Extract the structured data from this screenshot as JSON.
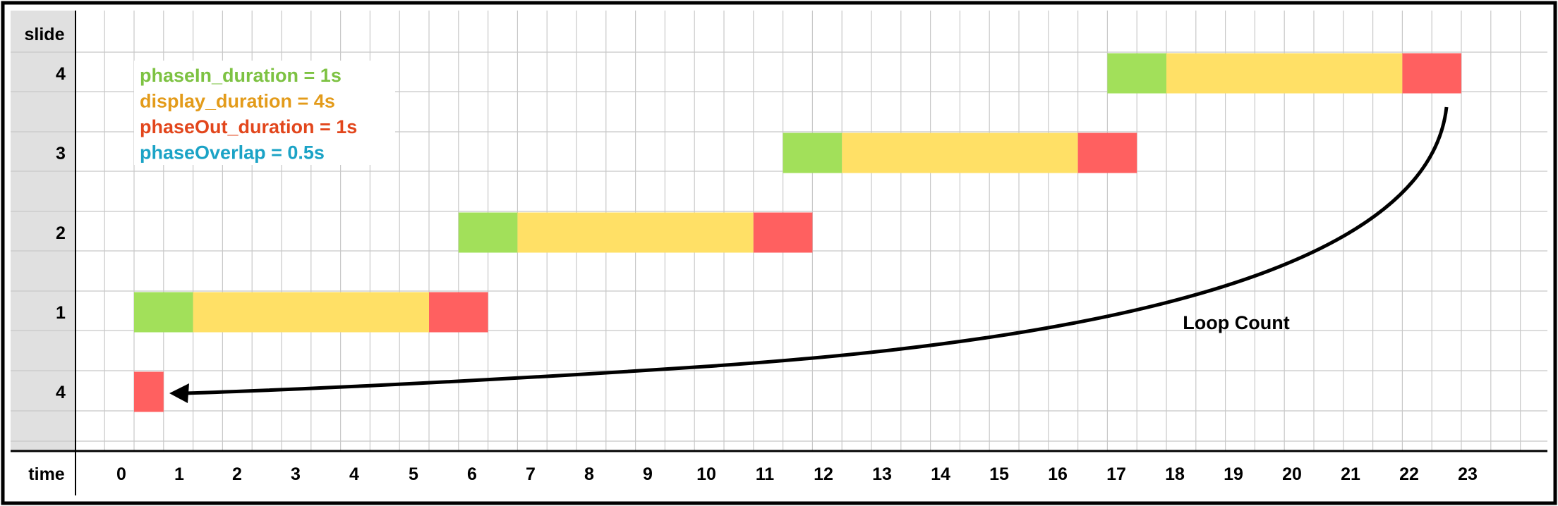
{
  "row_header_label": "slide",
  "time_header_label": "time",
  "slide_rows": [
    "4",
    "3",
    "2",
    "1",
    "4"
  ],
  "time_ticks": [
    "0",
    "1",
    "2",
    "3",
    "4",
    "5",
    "6",
    "7",
    "8",
    "9",
    "10",
    "11",
    "12",
    "13",
    "14",
    "15",
    "16",
    "17",
    "18",
    "19",
    "20",
    "21",
    "22",
    "23"
  ],
  "legend": [
    {
      "text": "phaseIn_duration = 1s",
      "color": "#7dc242"
    },
    {
      "text": "display_duration = 4s",
      "color": "#e39b1a"
    },
    {
      "text": "phaseOut_duration = 1s",
      "color": "#e2461c"
    },
    {
      "text": "phaseOverlap = 0.5s",
      "color": "#1ba3c6"
    }
  ],
  "phase_colors": {
    "phaseIn": "#a2e05a",
    "display": "#ffe066",
    "phaseOut": "#ff6060"
  },
  "slide_bars": [
    {
      "row": 0,
      "slide": "4",
      "phases": [
        {
          "phase": "phaseIn",
          "start": 17.0,
          "end": 18.0
        },
        {
          "phase": "display",
          "start": 18.0,
          "end": 22.0
        },
        {
          "phase": "phaseOut",
          "start": 22.0,
          "end": 23.0
        }
      ]
    },
    {
      "row": 1,
      "slide": "3",
      "phases": [
        {
          "phase": "phaseIn",
          "start": 11.5,
          "end": 12.5
        },
        {
          "phase": "display",
          "start": 12.5,
          "end": 16.5
        },
        {
          "phase": "phaseOut",
          "start": 16.5,
          "end": 17.5
        }
      ]
    },
    {
      "row": 2,
      "slide": "2",
      "phases": [
        {
          "phase": "phaseIn",
          "start": 6.0,
          "end": 7.0
        },
        {
          "phase": "display",
          "start": 7.0,
          "end": 11.0
        },
        {
          "phase": "phaseOut",
          "start": 11.0,
          "end": 12.0
        }
      ]
    },
    {
      "row": 3,
      "slide": "1",
      "phases": [
        {
          "phase": "phaseIn",
          "start": 0.5,
          "end": 1.5
        },
        {
          "phase": "display",
          "start": 1.5,
          "end": 5.5
        },
        {
          "phase": "phaseOut",
          "start": 5.5,
          "end": 6.5
        }
      ]
    },
    {
      "row": 4,
      "slide": "4",
      "phases": [
        {
          "phase": "phaseOut",
          "start": 0.5,
          "end": 1.0
        }
      ]
    }
  ],
  "loop_arrow_label": "Loop Count"
}
